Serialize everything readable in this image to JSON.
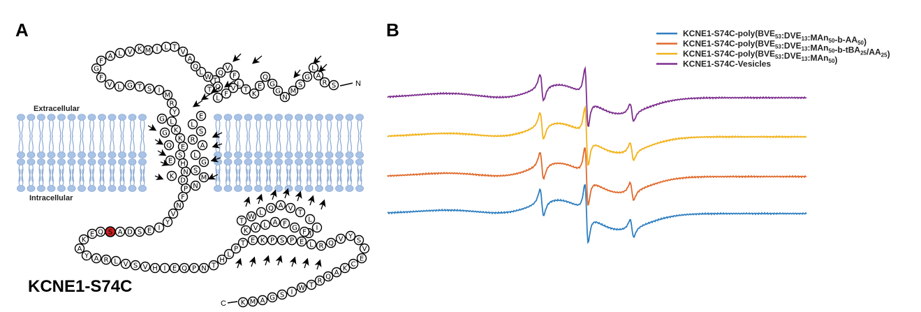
{
  "panel_a": {
    "letter": "A",
    "title": "KCNE1-S74C",
    "extracellular_label": "Extracellular",
    "intracellular_label": "Intracellular",
    "n_terminus": "N",
    "c_terminus": "C",
    "mutated_residue": "S",
    "mutation_color": "#cc1f1f"
  },
  "panel_b": {
    "letter": "B",
    "legend": [
      {
        "label": "KCNE1-S74C-poly(BVE",
        "s1": "53",
        "m1": ":DVE",
        "s2": "13",
        "m2": ":MAn",
        "s3": "50",
        "tail": "-b-AA",
        "s4": "50",
        "end": ")",
        "color": "#2f7fc1"
      },
      {
        "label": "KCNE1-S74C-poly(BVE",
        "s1": "53",
        "m1": ":DVE",
        "s2": "13",
        "m2": ":MAn",
        "s3": "50",
        "tail": "-b-tBA",
        "s4": "25",
        "mid": "/AA",
        "s5": "25",
        "end": ")",
        "color": "#e06a2c"
      },
      {
        "label": "KCNE1-S74C-poly(BVE",
        "s1": "53",
        "m1": ":DVE",
        "s2": "13",
        "m2": ":MAn",
        "s3": "50",
        "end": ")",
        "color": "#f2b21a"
      },
      {
        "label": "KCNE1-S74C-Vesicles",
        "color": "#7d2f8e"
      }
    ]
  }
}
